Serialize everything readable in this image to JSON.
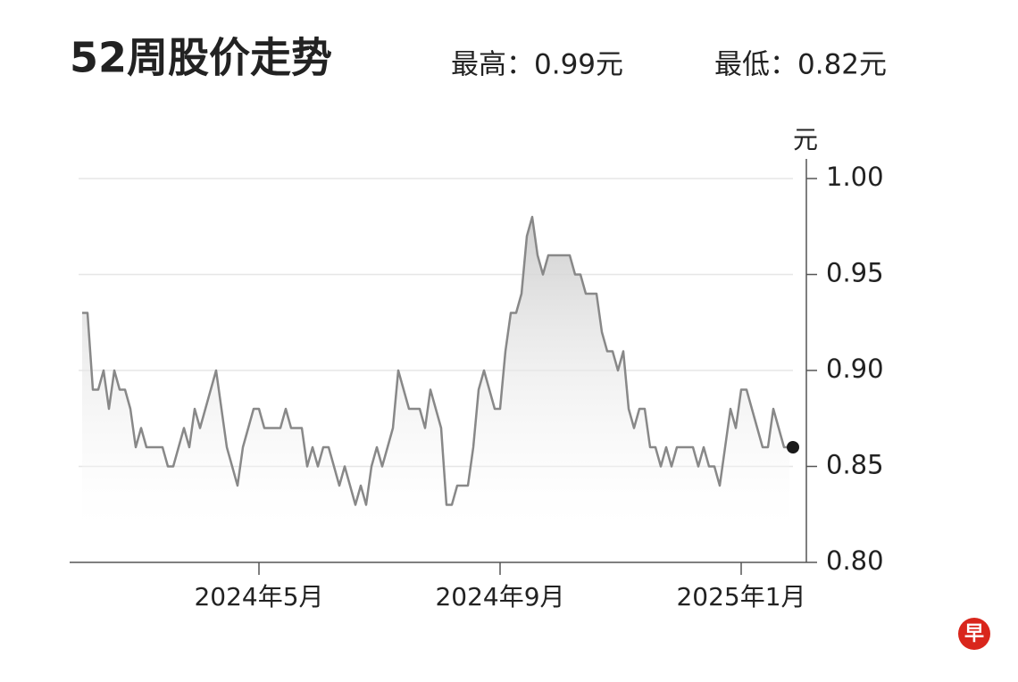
{
  "chart_data": {
    "type": "line",
    "title": "52周股价走势",
    "annotations": [
      "最高：0.99元",
      "最低：0.82元"
    ],
    "y_label": "元",
    "logo": "早",
    "categories": [
      null,
      null,
      null,
      null,
      null,
      null,
      null,
      null,
      null,
      null,
      null,
      null,
      null,
      null,
      null,
      null,
      null,
      null,
      null,
      null,
      null,
      null,
      null,
      null,
      null,
      null,
      null,
      null,
      null,
      null,
      null,
      null,
      null,
      "2024年5月",
      null,
      null,
      null,
      null,
      null,
      null,
      null,
      null,
      null,
      null,
      null,
      null,
      null,
      null,
      null,
      null,
      null,
      null,
      null,
      null,
      null,
      null,
      null,
      null,
      null,
      null,
      null,
      null,
      null,
      null,
      null,
      null,
      null,
      null,
      null,
      null,
      null,
      null,
      null,
      null,
      null,
      null,
      null,
      null,
      "2024年9月",
      null,
      null,
      null,
      null,
      null,
      null,
      null,
      null,
      null,
      null,
      null,
      null,
      null,
      null,
      null,
      null,
      null,
      null,
      null,
      null,
      null,
      null,
      null,
      null,
      null,
      null,
      null,
      null,
      null,
      null,
      null,
      null,
      null,
      null,
      null,
      null,
      null,
      null,
      null,
      null,
      null,
      null,
      null,
      null,
      "2025年1月",
      null,
      null,
      null,
      null,
      null,
      null,
      null,
      null,
      null
    ],
    "values": [
      0.93,
      0.93,
      0.89,
      0.89,
      0.9,
      0.88,
      0.9,
      0.89,
      0.89,
      0.88,
      0.86,
      0.87,
      0.86,
      0.86,
      0.86,
      0.86,
      0.85,
      0.85,
      0.86,
      0.87,
      0.86,
      0.88,
      0.87,
      0.88,
      0.89,
      0.9,
      0.88,
      0.86,
      0.85,
      0.84,
      0.86,
      0.87,
      0.88,
      0.88,
      0.87,
      0.87,
      0.87,
      0.87,
      0.88,
      0.87,
      0.87,
      0.87,
      0.85,
      0.86,
      0.85,
      0.86,
      0.86,
      0.85,
      0.84,
      0.85,
      0.84,
      0.83,
      0.84,
      0.83,
      0.85,
      0.86,
      0.85,
      0.86,
      0.87,
      0.9,
      0.89,
      0.88,
      0.88,
      0.88,
      0.87,
      0.89,
      0.88,
      0.87,
      0.83,
      0.83,
      0.84,
      0.84,
      0.84,
      0.86,
      0.89,
      0.9,
      0.89,
      0.88,
      0.88,
      0.91,
      0.93,
      0.93,
      0.94,
      0.97,
      0.98,
      0.96,
      0.95,
      0.96,
      0.96,
      0.96,
      0.96,
      0.96,
      0.95,
      0.95,
      0.94,
      0.94,
      0.94,
      0.92,
      0.91,
      0.91,
      0.9,
      0.91,
      0.88,
      0.87,
      0.88,
      0.88,
      0.86,
      0.86,
      0.85,
      0.86,
      0.85,
      0.86,
      0.86,
      0.86,
      0.86,
      0.85,
      0.86,
      0.85,
      0.85,
      0.84,
      0.86,
      0.88,
      0.87,
      0.89,
      0.89,
      0.88,
      0.87,
      0.86,
      0.86,
      0.88,
      0.87,
      0.86,
      0.86
    ],
    "color": "#888888",
    "ylim": [
      0.8,
      1.0
    ],
    "yticks": [
      {
        "value": 0.8,
        "label": "0.80"
      },
      0.85,
      {
        "value": 0.9,
        "label": "0.90"
      },
      0.95,
      {
        "value": 1.0,
        "label": "1.00"
      }
    ],
    "grid": true,
    "area": true,
    "end_marker": true
  }
}
